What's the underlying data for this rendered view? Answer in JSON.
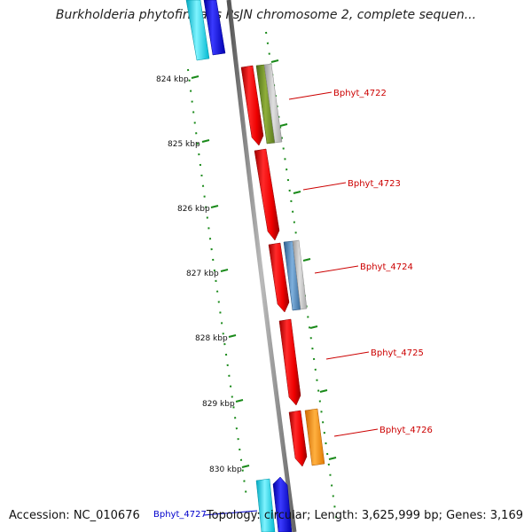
{
  "title": "Burkholderia phytofirmans PsJN chromosome 2, complete sequen...",
  "footer": {
    "accession": "Accession: NC_010676",
    "summary": "Topology: circular; Length: 3,625,999 bp; Genes: 3,169"
  },
  "ticks": [
    "824 kbp",
    "825 kbp",
    "826 kbp",
    "827 kbp",
    "828 kbp",
    "829 kbp",
    "830 kbp"
  ],
  "genes": [
    {
      "label": "Bphyt_4722",
      "color": "#cc0000"
    },
    {
      "label": "Bphyt_4723",
      "color": "#cc0000"
    },
    {
      "label": "Bphyt_4724",
      "color": "#cc0000"
    },
    {
      "label": "Bphyt_4725",
      "color": "#cc0000"
    },
    {
      "label": "Bphyt_4726",
      "color": "#cc0000"
    },
    {
      "label": "Bphyt_4727",
      "color": "#0000cc"
    }
  ],
  "colors": {
    "backbone": "#888888",
    "tick": "#1a8a1a",
    "cds_red": "#ee0000",
    "cds_blue": "#0000ee",
    "cyan": "#00c8d8",
    "green_feature": "#6f8f2a",
    "steel_feature": "#4a7fb0",
    "orange_feature": "#ff8c00"
  }
}
